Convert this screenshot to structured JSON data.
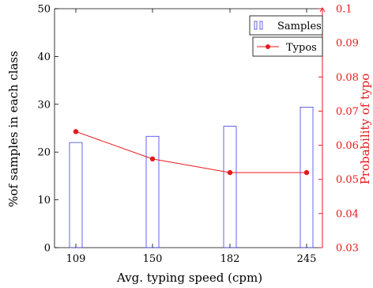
{
  "chart_data": {
    "type": "bar",
    "categories": [
      "109",
      "150",
      "182",
      "245"
    ],
    "xlabel": "Avg. typing speed (cpm)",
    "ylabel_left": "%of samples in each class",
    "ylabel_right": "Probability of typo",
    "left_axis": {
      "min": 0,
      "max": 50,
      "ticks": [
        "0",
        "10",
        "20",
        "30",
        "40",
        "50"
      ]
    },
    "right_axis": {
      "min": 0.03,
      "max": 0.1,
      "ticks": [
        "0.03",
        "0.04",
        "0.05",
        "0.06",
        "0.07",
        "0.08",
        "0.09",
        "0.1"
      ],
      "color": "#e8191c"
    },
    "series": [
      {
        "name": "Samples",
        "type": "bar",
        "axis": "left",
        "values": [
          22,
          23.3,
          25.4,
          29.4
        ],
        "color": "#4040e0"
      },
      {
        "name": "Typos",
        "type": "line",
        "axis": "right",
        "values": [
          0.064,
          0.056,
          0.052,
          0.052
        ],
        "color": "#e8191c"
      }
    ],
    "legend": {
      "placement": "top-right"
    },
    "grid": false
  }
}
